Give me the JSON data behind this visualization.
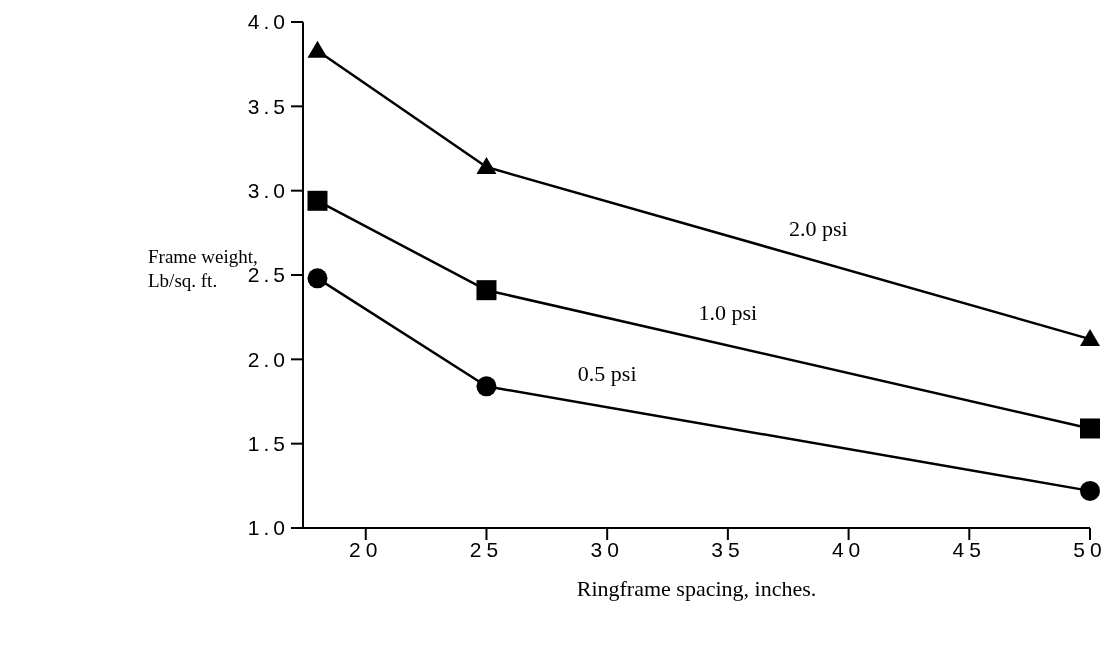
{
  "chart_data": {
    "type": "line",
    "xlabel": "Ringframe spacing, inches.",
    "ylabel": "Frame weight, Lb/sq. ft.",
    "x": [
      18,
      25,
      50
    ],
    "series": [
      {
        "name": "2.0 psi",
        "color": "#000000",
        "marker": "triangle",
        "values": [
          3.83,
          3.14,
          2.12
        ]
      },
      {
        "name": "1.0 psi",
        "color": "#000000",
        "marker": "square",
        "values": [
          2.94,
          2.41,
          1.59
        ]
      },
      {
        "name": "0.5 psi",
        "color": "#000000",
        "marker": "circle",
        "values": [
          2.48,
          1.84,
          1.22
        ]
      }
    ],
    "xlim": [
      17.4,
      50
    ],
    "xticks": [
      20,
      25,
      30,
      35,
      40,
      45,
      50
    ],
    "ylim": [
      1.0,
      4.0
    ],
    "yticks": [
      {
        "value": 1.0,
        "label": "1.0"
      },
      {
        "value": 1.5,
        "label": "1.5"
      },
      {
        "value": 2.0,
        "label": "2.0"
      },
      {
        "value": 2.5,
        "label": "2.5"
      },
      {
        "value": 3.0,
        "label": "3.0"
      },
      {
        "value": 3.5,
        "label": "3.5"
      },
      {
        "value": 4.0,
        "label": "4.0"
      }
    ],
    "grid": false,
    "legend": false,
    "line_style": "solid"
  }
}
